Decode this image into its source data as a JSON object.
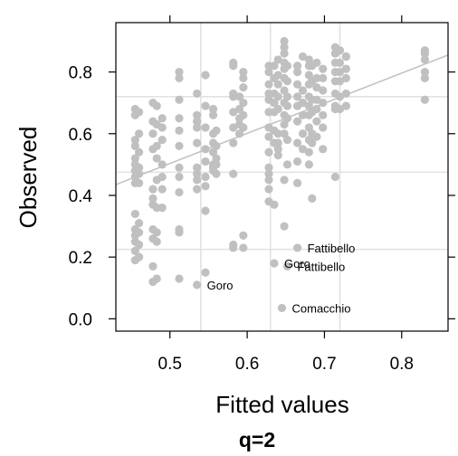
{
  "chart_data": {
    "type": "scatter",
    "title": "",
    "xlabel": "Fitted values",
    "ylabel": "Observed",
    "caption": "q=2",
    "xlim": [
      0.43,
      0.86
    ],
    "ylim": [
      -0.04,
      0.96
    ],
    "xticks": [
      0.5,
      0.6,
      0.7,
      0.8
    ],
    "xtick_labels": [
      "0.5",
      "0.6",
      "0.7",
      "0.8"
    ],
    "yticks": [
      0.0,
      0.2,
      0.4,
      0.6,
      0.8
    ],
    "ytick_labels": [
      "0.0",
      "0.2",
      "0.4",
      "0.6",
      "0.8"
    ],
    "grid": true,
    "grid_x": [
      0.54,
      0.63,
      0.72
    ],
    "grid_y": [
      0.225,
      0.475,
      0.72
    ],
    "point_color": "#c0c0c0",
    "line_color": "#c0c0c0",
    "regression_line": {
      "x": [
        0.43,
        0.86
      ],
      "y": [
        0.435,
        0.855
      ]
    },
    "points": [
      [
        0.455,
        0.68
      ],
      [
        0.455,
        0.66
      ],
      [
        0.455,
        0.58
      ],
      [
        0.455,
        0.56
      ],
      [
        0.455,
        0.52
      ],
      [
        0.455,
        0.5
      ],
      [
        0.455,
        0.48
      ],
      [
        0.455,
        0.46
      ],
      [
        0.455,
        0.44
      ],
      [
        0.455,
        0.34
      ],
      [
        0.455,
        0.29
      ],
      [
        0.455,
        0.27
      ],
      [
        0.455,
        0.25
      ],
      [
        0.455,
        0.22
      ],
      [
        0.455,
        0.19
      ],
      [
        0.46,
        0.67
      ],
      [
        0.46,
        0.6
      ],
      [
        0.46,
        0.54
      ],
      [
        0.46,
        0.49
      ],
      [
        0.46,
        0.47
      ],
      [
        0.46,
        0.44
      ],
      [
        0.46,
        0.31
      ],
      [
        0.46,
        0.28
      ],
      [
        0.46,
        0.24
      ],
      [
        0.46,
        0.2
      ],
      [
        0.478,
        0.7
      ],
      [
        0.478,
        0.64
      ],
      [
        0.478,
        0.6
      ],
      [
        0.478,
        0.55
      ],
      [
        0.478,
        0.42
      ],
      [
        0.478,
        0.39
      ],
      [
        0.478,
        0.37
      ],
      [
        0.478,
        0.29
      ],
      [
        0.478,
        0.26
      ],
      [
        0.478,
        0.17
      ],
      [
        0.478,
        0.12
      ],
      [
        0.483,
        0.69
      ],
      [
        0.483,
        0.63
      ],
      [
        0.483,
        0.56
      ],
      [
        0.483,
        0.52
      ],
      [
        0.483,
        0.45
      ],
      [
        0.483,
        0.36
      ],
      [
        0.483,
        0.28
      ],
      [
        0.483,
        0.25
      ],
      [
        0.483,
        0.13
      ],
      [
        0.49,
        0.65
      ],
      [
        0.49,
        0.62
      ],
      [
        0.49,
        0.58
      ],
      [
        0.49,
        0.5
      ],
      [
        0.49,
        0.46
      ],
      [
        0.49,
        0.42
      ],
      [
        0.49,
        0.36
      ],
      [
        0.512,
        0.8
      ],
      [
        0.512,
        0.78
      ],
      [
        0.512,
        0.71
      ],
      [
        0.512,
        0.65
      ],
      [
        0.512,
        0.61
      ],
      [
        0.512,
        0.56
      ],
      [
        0.512,
        0.49
      ],
      [
        0.512,
        0.46
      ],
      [
        0.512,
        0.41
      ],
      [
        0.512,
        0.29
      ],
      [
        0.512,
        0.28
      ],
      [
        0.512,
        0.13
      ],
      [
        0.535,
        0.73
      ],
      [
        0.535,
        0.66
      ],
      [
        0.535,
        0.64
      ],
      [
        0.535,
        0.62
      ],
      [
        0.535,
        0.57
      ],
      [
        0.535,
        0.49
      ],
      [
        0.535,
        0.47
      ],
      [
        0.535,
        0.45
      ],
      [
        0.535,
        0.42
      ],
      [
        0.535,
        0.11
      ],
      [
        0.546,
        0.79
      ],
      [
        0.546,
        0.69
      ],
      [
        0.546,
        0.62
      ],
      [
        0.546,
        0.55
      ],
      [
        0.546,
        0.51
      ],
      [
        0.546,
        0.46
      ],
      [
        0.546,
        0.43
      ],
      [
        0.546,
        0.35
      ],
      [
        0.546,
        0.15
      ],
      [
        0.556,
        0.68
      ],
      [
        0.556,
        0.66
      ],
      [
        0.556,
        0.6
      ],
      [
        0.556,
        0.57
      ],
      [
        0.556,
        0.54
      ],
      [
        0.556,
        0.5
      ],
      [
        0.556,
        0.49
      ],
      [
        0.556,
        0.48
      ],
      [
        0.56,
        0.61
      ],
      [
        0.56,
        0.56
      ],
      [
        0.56,
        0.52
      ],
      [
        0.56,
        0.5
      ],
      [
        0.56,
        0.47
      ],
      [
        0.582,
        0.83
      ],
      [
        0.582,
        0.82
      ],
      [
        0.582,
        0.73
      ],
      [
        0.582,
        0.72
      ],
      [
        0.582,
        0.67
      ],
      [
        0.582,
        0.62
      ],
      [
        0.582,
        0.57
      ],
      [
        0.582,
        0.47
      ],
      [
        0.582,
        0.24
      ],
      [
        0.582,
        0.23
      ],
      [
        0.59,
        0.72
      ],
      [
        0.59,
        0.68
      ],
      [
        0.59,
        0.65
      ],
      [
        0.59,
        0.63
      ],
      [
        0.59,
        0.6
      ],
      [
        0.595,
        0.8
      ],
      [
        0.595,
        0.78
      ],
      [
        0.595,
        0.75
      ],
      [
        0.595,
        0.7
      ],
      [
        0.595,
        0.66
      ],
      [
        0.595,
        0.62
      ],
      [
        0.595,
        0.27
      ],
      [
        0.595,
        0.23
      ],
      [
        0.628,
        0.82
      ],
      [
        0.628,
        0.8
      ],
      [
        0.628,
        0.76
      ],
      [
        0.628,
        0.73
      ],
      [
        0.628,
        0.71
      ],
      [
        0.628,
        0.67
      ],
      [
        0.628,
        0.62
      ],
      [
        0.628,
        0.59
      ],
      [
        0.628,
        0.54
      ],
      [
        0.628,
        0.49
      ],
      [
        0.628,
        0.47
      ],
      [
        0.628,
        0.45
      ],
      [
        0.628,
        0.42
      ],
      [
        0.628,
        0.38
      ],
      [
        0.635,
        0.82
      ],
      [
        0.635,
        0.78
      ],
      [
        0.635,
        0.73
      ],
      [
        0.635,
        0.7
      ],
      [
        0.635,
        0.67
      ],
      [
        0.635,
        0.61
      ],
      [
        0.635,
        0.57
      ],
      [
        0.635,
        0.37
      ],
      [
        0.635,
        0.18
      ],
      [
        0.64,
        0.84
      ],
      [
        0.64,
        0.79
      ],
      [
        0.64,
        0.76
      ],
      [
        0.64,
        0.72
      ],
      [
        0.64,
        0.68
      ],
      [
        0.64,
        0.6
      ],
      [
        0.64,
        0.57
      ],
      [
        0.64,
        0.55
      ],
      [
        0.64,
        0.53
      ],
      [
        0.648,
        0.9
      ],
      [
        0.648,
        0.88
      ],
      [
        0.648,
        0.86
      ],
      [
        0.648,
        0.83
      ],
      [
        0.648,
        0.81
      ],
      [
        0.648,
        0.78
      ],
      [
        0.648,
        0.74
      ],
      [
        0.648,
        0.7
      ],
      [
        0.648,
        0.66
      ],
      [
        0.648,
        0.63
      ],
      [
        0.648,
        0.6
      ],
      [
        0.648,
        0.45
      ],
      [
        0.648,
        0.3
      ],
      [
        0.652,
        0.82
      ],
      [
        0.652,
        0.77
      ],
      [
        0.652,
        0.72
      ],
      [
        0.652,
        0.69
      ],
      [
        0.652,
        0.65
      ],
      [
        0.652,
        0.58
      ],
      [
        0.652,
        0.5
      ],
      [
        0.652,
        0.17
      ],
      [
        0.645,
        0.035
      ],
      [
        0.665,
        0.82
      ],
      [
        0.665,
        0.8
      ],
      [
        0.665,
        0.76
      ],
      [
        0.665,
        0.72
      ],
      [
        0.665,
        0.69
      ],
      [
        0.665,
        0.64
      ],
      [
        0.665,
        0.57
      ],
      [
        0.665,
        0.51
      ],
      [
        0.665,
        0.44
      ],
      [
        0.665,
        0.23
      ],
      [
        0.672,
        0.85
      ],
      [
        0.672,
        0.74
      ],
      [
        0.672,
        0.7
      ],
      [
        0.672,
        0.66
      ],
      [
        0.672,
        0.6
      ],
      [
        0.672,
        0.55
      ],
      [
        0.68,
        0.84
      ],
      [
        0.68,
        0.82
      ],
      [
        0.68,
        0.79
      ],
      [
        0.68,
        0.76
      ],
      [
        0.68,
        0.72
      ],
      [
        0.68,
        0.69
      ],
      [
        0.68,
        0.66
      ],
      [
        0.68,
        0.62
      ],
      [
        0.68,
        0.58
      ],
      [
        0.68,
        0.54
      ],
      [
        0.68,
        0.5
      ],
      [
        0.684,
        0.82
      ],
      [
        0.684,
        0.77
      ],
      [
        0.684,
        0.71
      ],
      [
        0.684,
        0.67
      ],
      [
        0.684,
        0.6
      ],
      [
        0.684,
        0.57
      ],
      [
        0.684,
        0.39
      ],
      [
        0.69,
        0.83
      ],
      [
        0.69,
        0.78
      ],
      [
        0.69,
        0.75
      ],
      [
        0.69,
        0.71
      ],
      [
        0.69,
        0.68
      ],
      [
        0.69,
        0.64
      ],
      [
        0.69,
        0.59
      ],
      [
        0.698,
        0.81
      ],
      [
        0.698,
        0.78
      ],
      [
        0.698,
        0.74
      ],
      [
        0.698,
        0.7
      ],
      [
        0.698,
        0.66
      ],
      [
        0.698,
        0.62
      ],
      [
        0.698,
        0.55
      ],
      [
        0.714,
        0.88
      ],
      [
        0.714,
        0.86
      ],
      [
        0.714,
        0.83
      ],
      [
        0.714,
        0.8
      ],
      [
        0.714,
        0.77
      ],
      [
        0.714,
        0.73
      ],
      [
        0.714,
        0.69
      ],
      [
        0.714,
        0.68
      ],
      [
        0.714,
        0.46
      ],
      [
        0.72,
        0.87
      ],
      [
        0.72,
        0.83
      ],
      [
        0.72,
        0.8
      ],
      [
        0.72,
        0.77
      ],
      [
        0.72,
        0.72
      ],
      [
        0.72,
        0.68
      ],
      [
        0.728,
        0.85
      ],
      [
        0.728,
        0.81
      ],
      [
        0.728,
        0.78
      ],
      [
        0.728,
        0.73
      ],
      [
        0.728,
        0.69
      ],
      [
        0.728,
        0.85
      ],
      [
        0.83,
        0.87
      ],
      [
        0.83,
        0.86
      ],
      [
        0.83,
        0.84
      ],
      [
        0.83,
        0.8
      ],
      [
        0.83,
        0.78
      ],
      [
        0.83,
        0.71
      ]
    ],
    "annotations": [
      {
        "text": "Fattibello",
        "x": 0.665,
        "y": 0.23
      },
      {
        "text": "Goro",
        "x": 0.635,
        "y": 0.18
      },
      {
        "text": "Fattibello",
        "x": 0.652,
        "y": 0.17
      },
      {
        "text": "Goro",
        "x": 0.535,
        "y": 0.11
      },
      {
        "text": "Comacchio",
        "x": 0.645,
        "y": 0.035
      }
    ]
  }
}
